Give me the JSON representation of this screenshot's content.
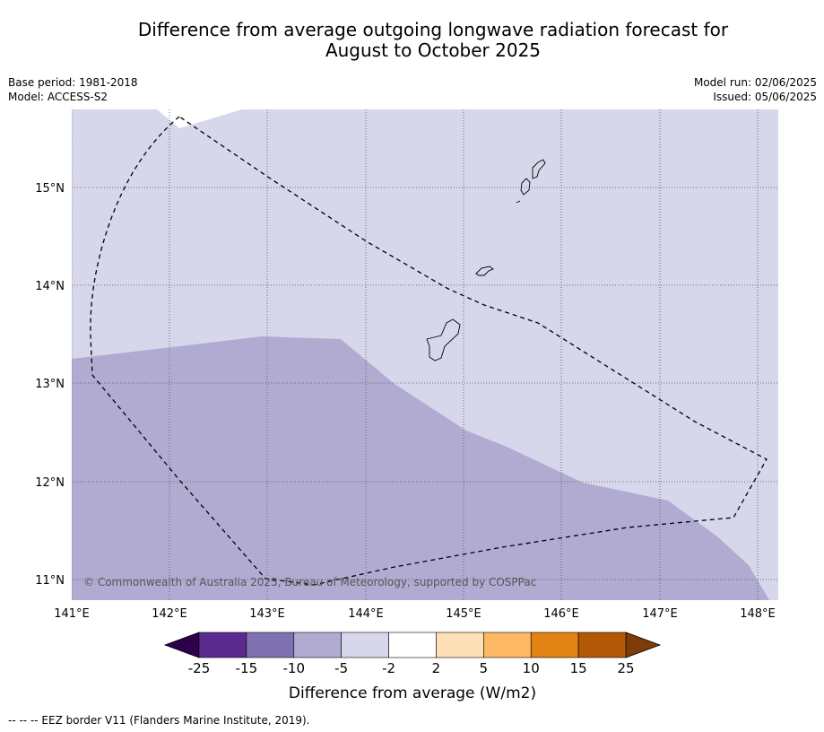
{
  "title_line1": "Difference from average outgoing longwave radiation forecast for",
  "title_line2": "August to October 2025",
  "base_period": "Base period: 1981-2018",
  "model": "Model: ACCESS-S2",
  "model_run": "Model run: 02/06/2025",
  "issued": "Issued: 05/06/2025",
  "copyright": "© Commonwealth of Australia 2025, Bureau of Meteorology, supported by COSPPac",
  "footnote": "--  --  -- EEZ border V11 (Flanders Marine Institute, 2019).",
  "map": {
    "lon_labels": [
      "141°E",
      "142°E",
      "143°E",
      "144°E",
      "145°E",
      "146°E",
      "147°E",
      "148°E"
    ],
    "lat_labels": [
      "15°N",
      "14°N",
      "13°N",
      "12°N",
      "11°N"
    ],
    "regions": [
      {
        "category": "-5 to -2",
        "color": "#d6d7ea"
      },
      {
        "category": "-10 to -5",
        "color": "#b1abd2"
      }
    ],
    "islands": [
      "Guam",
      "Rota",
      "Tinian",
      "Saipan"
    ]
  },
  "colorbar": {
    "label": "Difference from average (W/m2)",
    "ticks": [
      "-25",
      "-15",
      "-10",
      "-5",
      "-2",
      "2",
      "5",
      "10",
      "15",
      "25"
    ],
    "colors": [
      "#2d004b",
      "#5a2a8e",
      "#8072b0",
      "#b1abd2",
      "#d6d7ea",
      "#ffffff",
      "#fde0b5",
      "#fdb863",
      "#e08214",
      "#b35806",
      "#7f3b08"
    ]
  }
}
